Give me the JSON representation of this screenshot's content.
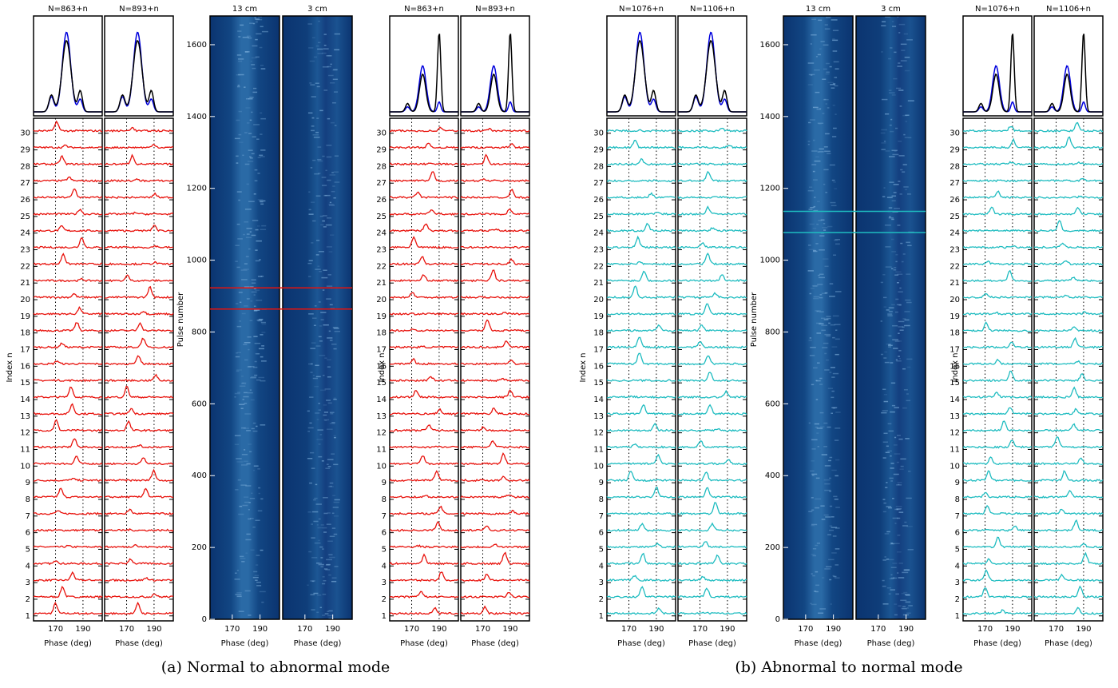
{
  "axes": {
    "phase_label": "Phase (deg)",
    "phase_lim": [
      154,
      204
    ],
    "phase_ticks": [
      170,
      190
    ],
    "index_label": "Index n",
    "index_lim": [
      0.7,
      30.9
    ],
    "index_ticks": [
      1,
      2,
      3,
      4,
      5,
      6,
      7,
      8,
      9,
      10,
      11,
      12,
      13,
      14,
      15,
      16,
      17,
      18,
      19,
      20,
      21,
      22,
      23,
      24,
      25,
      26,
      27,
      28,
      29,
      30
    ],
    "pulse_label": "Pulse number",
    "pulse_lim": [
      0,
      1680
    ],
    "pulse_ticks": [
      0,
      200,
      400,
      600,
      800,
      1000,
      1200,
      1400,
      1600
    ]
  },
  "groups": [
    {
      "caption": "(a) Normal to abnormal mode",
      "color": "#e8120c",
      "stack_titles": [
        "N=863+n",
        "N=893+n"
      ],
      "image_titles": [
        "13 cm",
        "3 cm"
      ],
      "marker_pulses": [
        864,
        923
      ]
    },
    {
      "caption": "(b) Abnormal to normal mode",
      "color": "#1ebcc0",
      "stack_titles": [
        "N=1076+n",
        "N=1106+n"
      ],
      "image_titles": [
        "13 cm",
        "3 cm"
      ],
      "marker_pulses": [
        1077,
        1136
      ]
    }
  ]
}
